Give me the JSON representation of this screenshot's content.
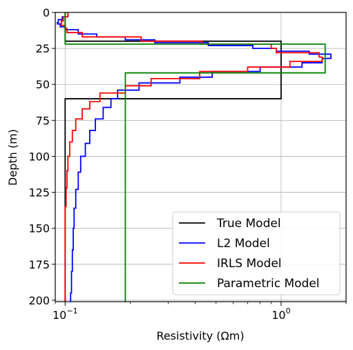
{
  "chart_data": {
    "type": "line",
    "xlabel": "Resistivity (Ωm)",
    "ylabel": "Depth (m)",
    "xscale": "log",
    "xlim": [
      0.09,
      2.0
    ],
    "ylim": [
      0,
      201
    ],
    "y_inverted": true,
    "grid": true,
    "legend_placement": "lower-right",
    "x_ticks": [
      {
        "value": 0.1,
        "label_base": "10",
        "label_exp": "−1"
      },
      {
        "value": 1.0,
        "label_base": "10",
        "label_exp": "0"
      }
    ],
    "y_ticks": [
      0,
      25,
      50,
      75,
      100,
      125,
      150,
      175,
      200
    ],
    "series": [
      {
        "name": "True Model",
        "color": "#000000",
        "profile": [
          [
            0.1,
            0
          ],
          [
            0.1,
            20
          ],
          [
            1.0,
            20
          ],
          [
            1.0,
            60
          ],
          [
            0.1,
            60
          ],
          [
            0.1,
            201
          ]
        ]
      },
      {
        "name": "L2 Model",
        "color": "#0000ff",
        "profile": [
          [
            0.103,
            0
          ],
          [
            0.097,
            3
          ],
          [
            0.093,
            5
          ],
          [
            0.092,
            7
          ],
          [
            0.095,
            8
          ],
          [
            0.1,
            10
          ],
          [
            0.115,
            12
          ],
          [
            0.14,
            15
          ],
          [
            0.19,
            17
          ],
          [
            0.26,
            19
          ],
          [
            0.46,
            21
          ],
          [
            0.74,
            23
          ],
          [
            0.95,
            25
          ],
          [
            1.35,
            27
          ],
          [
            1.7,
            29
          ],
          [
            1.55,
            32
          ],
          [
            1.25,
            35
          ],
          [
            0.8,
            38
          ],
          [
            0.48,
            41
          ],
          [
            0.34,
            45
          ],
          [
            0.22,
            49
          ],
          [
            0.175,
            54
          ],
          [
            0.163,
            60
          ],
          [
            0.15,
            66
          ],
          [
            0.138,
            74
          ],
          [
            0.13,
            82
          ],
          [
            0.124,
            91
          ],
          [
            0.118,
            100
          ],
          [
            0.115,
            111
          ],
          [
            0.112,
            123
          ],
          [
            0.11,
            136
          ],
          [
            0.109,
            150
          ],
          [
            0.108,
            165
          ],
          [
            0.107,
            180
          ],
          [
            0.106,
            195
          ],
          [
            0.106,
            201
          ]
        ]
      },
      {
        "name": "IRLS Model",
        "color": "#ff0000",
        "profile": [
          [
            0.103,
            0
          ],
          [
            0.098,
            3
          ],
          [
            0.096,
            6
          ],
          [
            0.1,
            9
          ],
          [
            0.102,
            11
          ],
          [
            0.12,
            14
          ],
          [
            0.225,
            17
          ],
          [
            0.43,
            20
          ],
          [
            0.9,
            22
          ],
          [
            0.95,
            25
          ],
          [
            1.5,
            28
          ],
          [
            1.55,
            31
          ],
          [
            1.1,
            34
          ],
          [
            0.7,
            38
          ],
          [
            0.42,
            41
          ],
          [
            0.25,
            46
          ],
          [
            0.19,
            51
          ],
          [
            0.145,
            56
          ],
          [
            0.13,
            62
          ],
          [
            0.12,
            67
          ],
          [
            0.112,
            74
          ],
          [
            0.108,
            82
          ],
          [
            0.105,
            90
          ],
          [
            0.103,
            100
          ],
          [
            0.102,
            110
          ],
          [
            0.101,
            122
          ],
          [
            0.1,
            135
          ],
          [
            0.1,
            201
          ]
        ]
      },
      {
        "name": "Parametric Model",
        "color": "#008000",
        "profile": [
          [
            0.1,
            0
          ],
          [
            0.1,
            22
          ],
          [
            1.6,
            22
          ],
          [
            1.6,
            42
          ],
          [
            0.19,
            42
          ],
          [
            0.19,
            201
          ]
        ]
      }
    ]
  }
}
